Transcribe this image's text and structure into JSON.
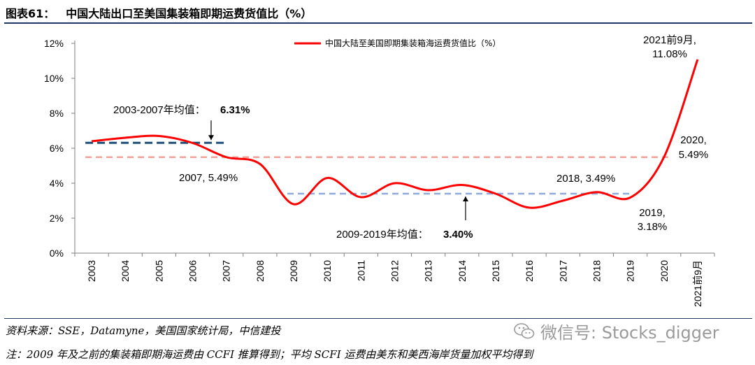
{
  "figure": {
    "number": "图表61：",
    "title": "中国大陆出口至美国集装箱即期运费货值比（%）",
    "source": "资料来源：SSE，Datamyne，美国国家统计局，中信建投",
    "note": "注：2009 年及之前的集装箱即期海运费由 CCFI 推算得到；平均 SCFI 运费由美东和美西海岸货量加权平均得到",
    "watermark": "微信号: Stocks_digger"
  },
  "chart_data": {
    "type": "line",
    "title": "",
    "xlabel": "",
    "ylabel": "",
    "ylim": [
      0,
      12
    ],
    "y_ticks": [
      "0%",
      "2%",
      "4%",
      "6%",
      "8%",
      "10%",
      "12%"
    ],
    "categories": [
      "2003",
      "2004",
      "2005",
      "2006",
      "2007",
      "2008",
      "2009",
      "2010",
      "2011",
      "2012",
      "2013",
      "2014",
      "2015",
      "2016",
      "2017",
      "2018",
      "2019",
      "2020",
      "2021前9月"
    ],
    "series": [
      {
        "name": "中国大陆至美国即期集装箱海运费货值比（%）",
        "color": "#ff0000",
        "values": [
          6.4,
          6.6,
          6.7,
          6.3,
          5.49,
          5.1,
          2.8,
          4.3,
          3.2,
          4.0,
          3.6,
          3.9,
          3.4,
          2.6,
          3.0,
          3.49,
          3.18,
          5.49,
          11.08
        ]
      }
    ],
    "reference_lines": [
      {
        "label": "2003-2007年均值：",
        "value_text": "6.31%",
        "value": 6.31,
        "from": 0,
        "to": 4,
        "color": "#1f4e79"
      },
      {
        "label": "2009-2019年均值：",
        "value_text": "3.40%",
        "value": 3.4,
        "from": 6,
        "to": 16,
        "color": "#8eaadb"
      },
      {
        "label": "",
        "value": 5.49,
        "from": 0,
        "to": 17,
        "color": "#f4a09a"
      }
    ],
    "annotations": [
      {
        "text": "2007, 5.49%",
        "index": 4
      },
      {
        "text": "2018, 3.49%",
        "index": 15
      },
      {
        "text": "2019,",
        "text2": "3.18%",
        "index": 16
      },
      {
        "text": "2020,",
        "text2": "5.49%",
        "index": 17
      },
      {
        "text": "2021前9月,",
        "text2": "11.08%",
        "index": 18
      }
    ],
    "legend": "top-center",
    "grid": false
  }
}
